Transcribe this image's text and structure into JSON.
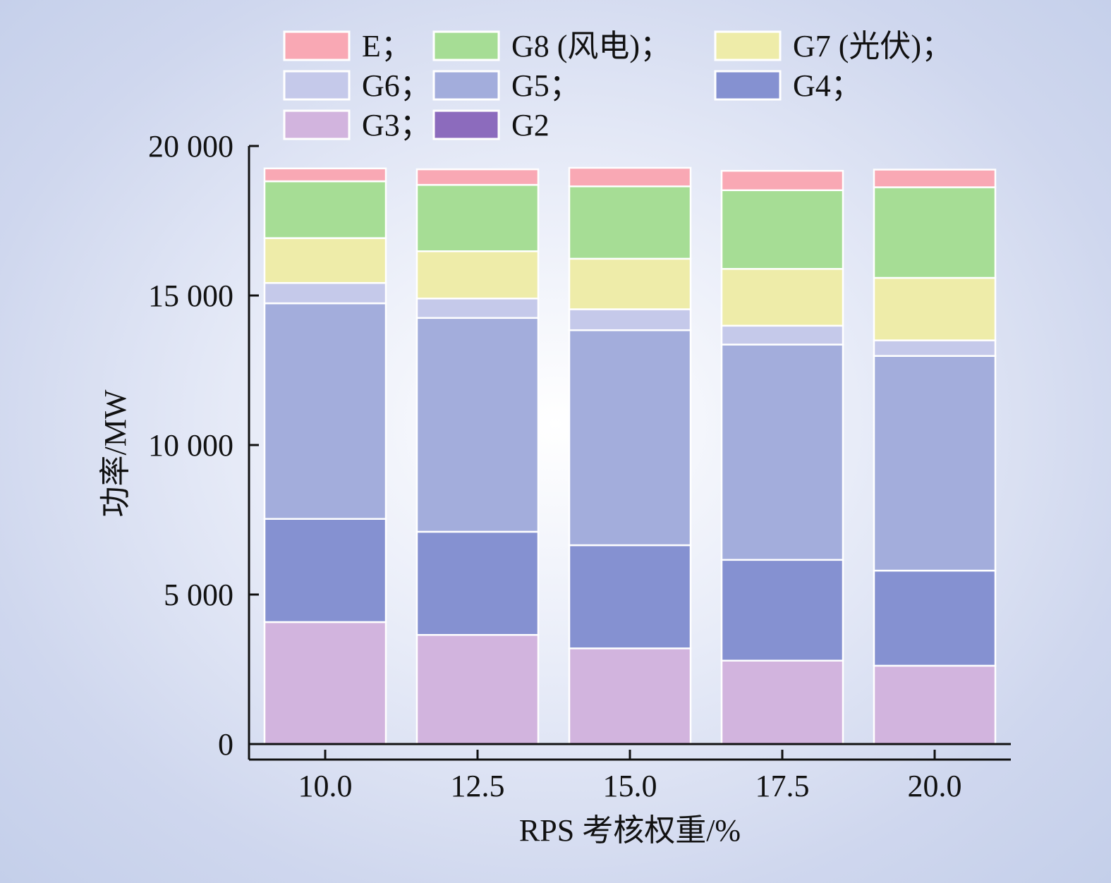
{
  "chart_data": {
    "type": "bar",
    "stacked": true,
    "xlabel": "RPS 考核权重/%",
    "ylabel": "功率/MW",
    "ylim": [
      0,
      20000
    ],
    "yticks": [
      0,
      5000,
      10000,
      15000,
      20000
    ],
    "ytick_labels": [
      "0",
      "5 000",
      "10 000",
      "15 000",
      "20 000"
    ],
    "categories": [
      "10.0",
      "12.5",
      "15.0",
      "17.5",
      "20.0"
    ],
    "legend_placement": "top",
    "series": [
      {
        "name": "G2",
        "legend_label": "G2",
        "color": "#8c6bbd",
        "values": [
          0,
          0,
          0,
          0,
          0
        ]
      },
      {
        "name": "G3",
        "legend_label": "G3；",
        "color": "#d2b4de",
        "values": [
          4080,
          3650,
          3200,
          2790,
          2620
        ]
      },
      {
        "name": "G4",
        "legend_label": "G4；",
        "color": "#8591d1",
        "values": [
          3450,
          3450,
          3450,
          3370,
          3180
        ]
      },
      {
        "name": "G5",
        "legend_label": "G5；",
        "color": "#a3addc",
        "values": [
          7210,
          7150,
          7190,
          7200,
          7180
        ]
      },
      {
        "name": "G6",
        "legend_label": "G6；",
        "color": "#c5c9ea",
        "values": [
          680,
          650,
          700,
          630,
          520
        ]
      },
      {
        "name": "G7 (光伏)",
        "legend_label": "G7 (光伏)；",
        "color": "#eeeca9",
        "values": [
          1500,
          1580,
          1690,
          1900,
          2090
        ]
      },
      {
        "name": "G8 (风电)",
        "legend_label": "G8 (风电)；",
        "color": "#a6dd95",
        "values": [
          1900,
          2220,
          2420,
          2630,
          3030
        ]
      },
      {
        "name": "E",
        "legend_label": "E；",
        "color": "#f9a8b4",
        "values": [
          430,
          520,
          620,
          650,
          590
        ]
      }
    ],
    "legend_order": [
      "E",
      "G8 (风电)",
      "G7 (光伏)",
      "G6",
      "G5",
      "G4",
      "G3",
      "G2"
    ]
  }
}
